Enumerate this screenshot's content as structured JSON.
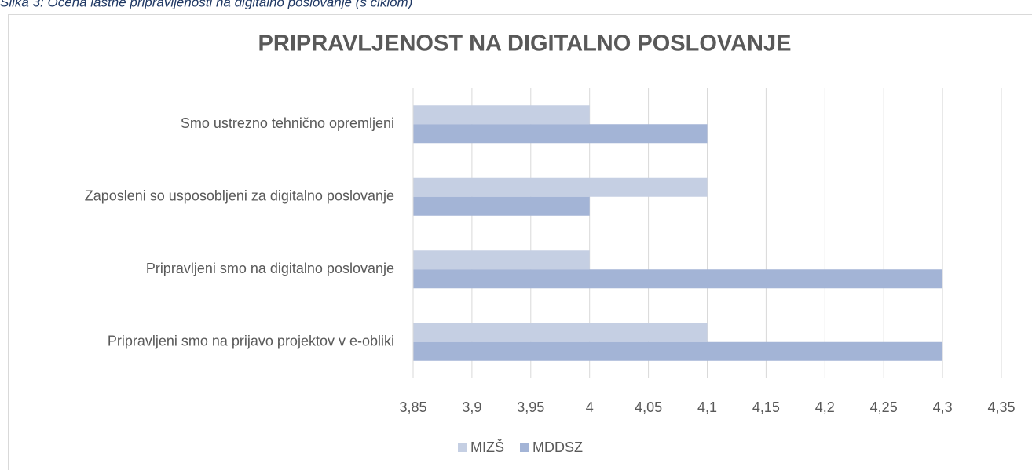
{
  "caption": "Slika 3: Ocena lastne pripravljenosti na digitalno poslovanje (s ciklom)",
  "chart_data": {
    "type": "barh",
    "title": "PRIPRAVLJENOST NA DIGITALNO POSLOVANJE",
    "categories": [
      "Smo ustrezno tehnično opremljeni",
      "Zaposleni so usposobljeni za digitalno poslovanje",
      "Pripravljeni smo na digitalno poslovanje",
      "Pripravljeni smo na prijavo projektov v e-obliki"
    ],
    "series": [
      {
        "name": "MIZŠ",
        "color": "#c5cfe3",
        "values": [
          4,
          4.1,
          4,
          4.1
        ]
      },
      {
        "name": "MDDSZ",
        "color": "#a3b4d6",
        "values": [
          4.1,
          4,
          4.3,
          4.3
        ]
      }
    ],
    "xlim": [
      3.85,
      4.35
    ],
    "xticks": [
      {
        "value": 3.85,
        "label": "3,85"
      },
      {
        "value": 3.9,
        "label": "3,9"
      },
      {
        "value": 3.95,
        "label": "3,95"
      },
      4,
      {
        "value": 4.05,
        "label": "4,05"
      },
      {
        "value": 4.1,
        "label": "4,1"
      },
      {
        "value": 4.15,
        "label": "4,15"
      },
      {
        "value": 4.2,
        "label": "4,2"
      },
      {
        "value": 4.25,
        "label": "4,25"
      },
      {
        "value": 4.3,
        "label": "4,3"
      },
      {
        "value": 4.35,
        "label": "4,35"
      }
    ],
    "grid": true,
    "legend": "bottom"
  }
}
